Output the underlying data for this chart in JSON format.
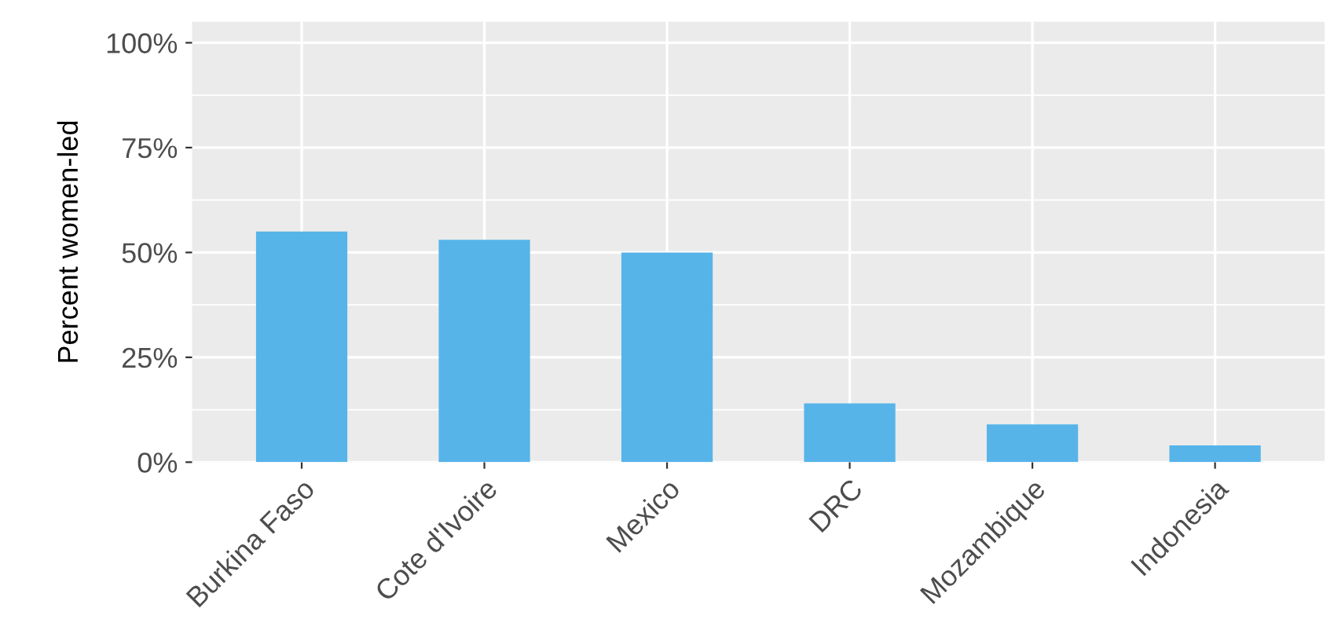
{
  "chart_data": {
    "type": "bar",
    "ylabel": "Percent women-led",
    "categories": [
      "Burkina Faso",
      "Cote d'Ivoire",
      "Mexico",
      "DRC",
      "Mozambique",
      "Indonesia"
    ],
    "values": [
      55,
      53,
      50,
      14,
      9,
      4
    ],
    "color": "#56b4e9",
    "ylim": [
      0,
      105
    ],
    "yticks": [
      {
        "value": 0,
        "label": "0%"
      },
      {
        "value": 25,
        "label": "25%"
      },
      {
        "value": 50,
        "label": "50%"
      },
      {
        "value": 75,
        "label": "75%"
      },
      {
        "value": 100,
        "label": "100%"
      }
    ],
    "grid": true,
    "legend": false
  }
}
